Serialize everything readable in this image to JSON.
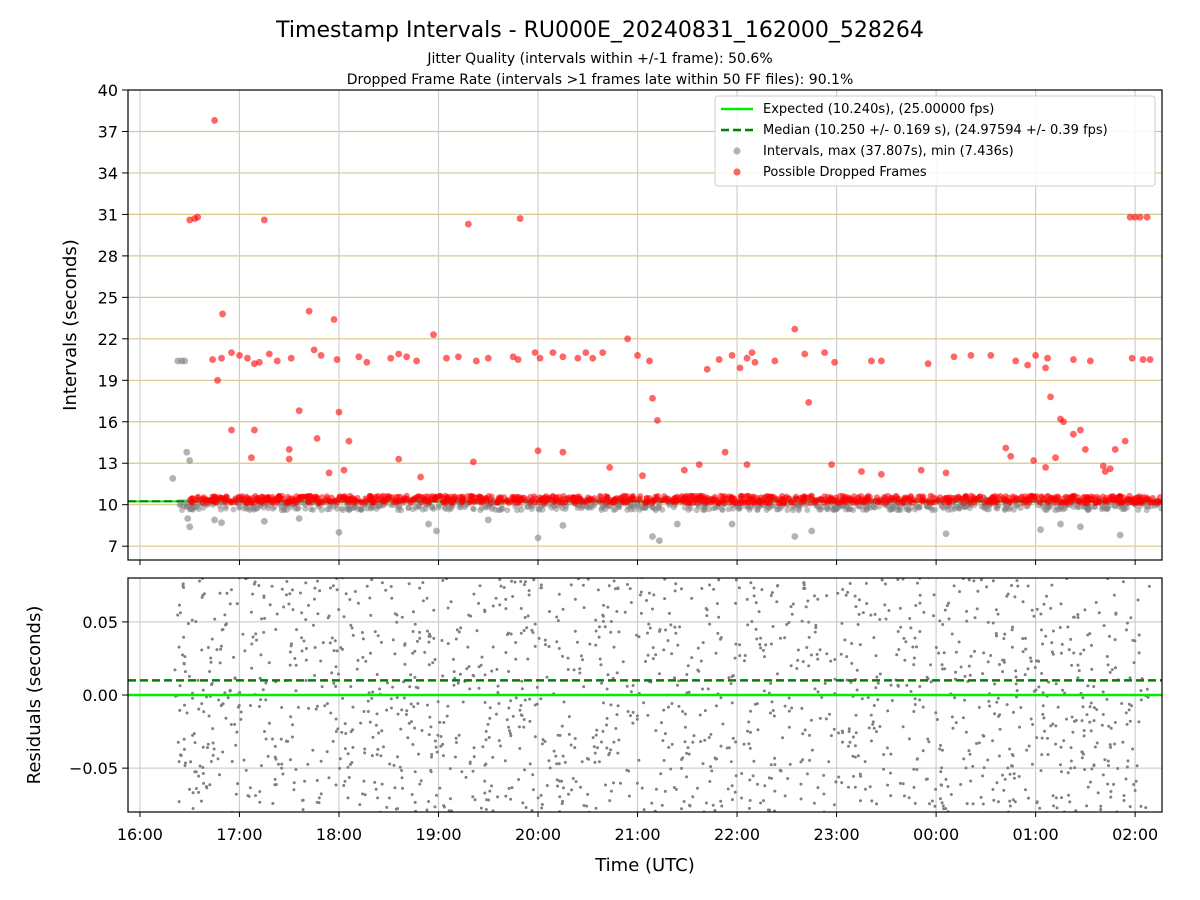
{
  "chart_data": [
    {
      "type": "scatter",
      "title": "Timestamp Intervals - RU000E_20240831_162000_528264",
      "subtitle_1": "Jitter Quality (intervals within +/-1 frame): 50.6%",
      "subtitle_2": "Dropped Frame Rate (intervals >1 frames late within 50 FF files): 90.1%",
      "ylabel": "Intervals (seconds)",
      "ylim": [
        6,
        40
      ],
      "yticks": [
        "7",
        "10",
        "13",
        "16",
        "19",
        "22",
        "25",
        "28",
        "31",
        "34",
        "37",
        "40"
      ],
      "grid": true,
      "legend_position": "top-right",
      "legend": [
        {
          "label": "Expected (10.240s), (25.00000 fps)",
          "color": "#00ee00",
          "style": "solid-line"
        },
        {
          "label": "Median (10.250 +/- 0.169 s), (24.97594 +/- 0.39 fps)",
          "color": "#007f00",
          "style": "dashed-line"
        },
        {
          "label": "Intervals, max (37.807s), min (7.436s)",
          "color": "#808080",
          "style": "marker"
        },
        {
          "label": "Possible Dropped Frames",
          "color": "#ff0000",
          "style": "marker"
        }
      ],
      "expected_interval": 10.24,
      "median_interval": 10.25,
      "intervals_summary": {
        "max": 37.807,
        "min": 7.436
      },
      "baseline_band_hours": [
        16.38,
        26.27
      ],
      "outliers_gray": [
        {
          "t": 16.33,
          "y": 11.9
        },
        {
          "t": 16.38,
          "y": 20.4
        },
        {
          "t": 16.42,
          "y": 20.4
        },
        {
          "t": 16.45,
          "y": 20.4
        },
        {
          "t": 16.47,
          "y": 13.8
        },
        {
          "t": 16.5,
          "y": 13.2
        },
        {
          "t": 16.48,
          "y": 9.0
        },
        {
          "t": 16.5,
          "y": 8.4
        },
        {
          "t": 16.75,
          "y": 8.9
        },
        {
          "t": 16.82,
          "y": 8.7
        },
        {
          "t": 17.25,
          "y": 8.8
        },
        {
          "t": 17.6,
          "y": 9.0
        },
        {
          "t": 18.0,
          "y": 8.0
        },
        {
          "t": 18.9,
          "y": 8.6
        },
        {
          "t": 18.98,
          "y": 8.1
        },
        {
          "t": 19.5,
          "y": 8.9
        },
        {
          "t": 20.0,
          "y": 7.6
        },
        {
          "t": 20.25,
          "y": 8.5
        },
        {
          "t": 21.15,
          "y": 7.7
        },
        {
          "t": 21.22,
          "y": 7.4
        },
        {
          "t": 21.4,
          "y": 8.6
        },
        {
          "t": 21.95,
          "y": 8.6
        },
        {
          "t": 22.58,
          "y": 7.7
        },
        {
          "t": 22.75,
          "y": 8.1
        },
        {
          "t": 24.1,
          "y": 7.9
        },
        {
          "t": 25.05,
          "y": 8.2
        },
        {
          "t": 25.25,
          "y": 8.6
        },
        {
          "t": 25.45,
          "y": 8.4
        },
        {
          "t": 25.85,
          "y": 7.8
        }
      ],
      "dropped_frames": [
        {
          "t": 16.5,
          "y": 30.6
        },
        {
          "t": 16.55,
          "y": 30.7
        },
        {
          "t": 16.58,
          "y": 30.8
        },
        {
          "t": 16.75,
          "y": 37.8
        },
        {
          "t": 16.83,
          "y": 23.8
        },
        {
          "t": 16.73,
          "y": 20.5
        },
        {
          "t": 16.78,
          "y": 19.0
        },
        {
          "t": 16.82,
          "y": 20.6
        },
        {
          "t": 16.92,
          "y": 21.0
        },
        {
          "t": 17.0,
          "y": 20.8
        },
        {
          "t": 17.08,
          "y": 20.6
        },
        {
          "t": 17.15,
          "y": 20.2
        },
        {
          "t": 17.2,
          "y": 20.3
        },
        {
          "t": 17.25,
          "y": 30.6
        },
        {
          "t": 17.3,
          "y": 20.9
        },
        {
          "t": 17.38,
          "y": 20.4
        },
        {
          "t": 17.52,
          "y": 20.6
        },
        {
          "t": 17.7,
          "y": 24.0
        },
        {
          "t": 17.75,
          "y": 21.2
        },
        {
          "t": 17.82,
          "y": 20.8
        },
        {
          "t": 17.95,
          "y": 23.4
        },
        {
          "t": 17.98,
          "y": 20.5
        },
        {
          "t": 18.2,
          "y": 20.7
        },
        {
          "t": 18.28,
          "y": 20.3
        },
        {
          "t": 18.52,
          "y": 20.6
        },
        {
          "t": 18.6,
          "y": 20.9
        },
        {
          "t": 18.68,
          "y": 20.7
        },
        {
          "t": 18.78,
          "y": 20.4
        },
        {
          "t": 18.95,
          "y": 22.3
        },
        {
          "t": 19.08,
          "y": 20.6
        },
        {
          "t": 19.2,
          "y": 20.7
        },
        {
          "t": 19.3,
          "y": 30.3
        },
        {
          "t": 19.38,
          "y": 20.4
        },
        {
          "t": 19.5,
          "y": 20.6
        },
        {
          "t": 19.75,
          "y": 20.7
        },
        {
          "t": 19.82,
          "y": 30.7
        },
        {
          "t": 19.8,
          "y": 20.5
        },
        {
          "t": 19.97,
          "y": 21.0
        },
        {
          "t": 20.02,
          "y": 20.6
        },
        {
          "t": 20.15,
          "y": 21.0
        },
        {
          "t": 20.25,
          "y": 20.7
        },
        {
          "t": 20.4,
          "y": 20.6
        },
        {
          "t": 20.48,
          "y": 21.0
        },
        {
          "t": 20.55,
          "y": 20.6
        },
        {
          "t": 20.65,
          "y": 21.0
        },
        {
          "t": 20.9,
          "y": 22.0
        },
        {
          "t": 21.0,
          "y": 20.8
        },
        {
          "t": 21.12,
          "y": 20.4
        },
        {
          "t": 21.15,
          "y": 17.7
        },
        {
          "t": 21.2,
          "y": 16.1
        },
        {
          "t": 21.7,
          "y": 19.8
        },
        {
          "t": 21.82,
          "y": 20.5
        },
        {
          "t": 21.95,
          "y": 20.8
        },
        {
          "t": 22.03,
          "y": 19.9
        },
        {
          "t": 22.1,
          "y": 20.6
        },
        {
          "t": 22.15,
          "y": 21.0
        },
        {
          "t": 22.18,
          "y": 20.3
        },
        {
          "t": 22.38,
          "y": 20.4
        },
        {
          "t": 22.58,
          "y": 22.7
        },
        {
          "t": 22.68,
          "y": 20.9
        },
        {
          "t": 22.72,
          "y": 17.4
        },
        {
          "t": 22.88,
          "y": 21.0
        },
        {
          "t": 22.98,
          "y": 20.3
        },
        {
          "t": 23.35,
          "y": 20.4
        },
        {
          "t": 23.45,
          "y": 20.4
        },
        {
          "t": 23.92,
          "y": 20.2
        },
        {
          "t": 24.18,
          "y": 20.7
        },
        {
          "t": 24.35,
          "y": 20.8
        },
        {
          "t": 24.55,
          "y": 20.8
        },
        {
          "t": 24.8,
          "y": 20.4
        },
        {
          "t": 24.92,
          "y": 20.1
        },
        {
          "t": 25.0,
          "y": 20.8
        },
        {
          "t": 25.1,
          "y": 19.9
        },
        {
          "t": 25.12,
          "y": 20.6
        },
        {
          "t": 25.15,
          "y": 17.8
        },
        {
          "t": 25.25,
          "y": 16.2
        },
        {
          "t": 25.28,
          "y": 16.0
        },
        {
          "t": 25.38,
          "y": 20.5
        },
        {
          "t": 25.55,
          "y": 20.4
        },
        {
          "t": 25.95,
          "y": 30.8
        },
        {
          "t": 26.0,
          "y": 30.8
        },
        {
          "t": 26.05,
          "y": 30.8
        },
        {
          "t": 26.12,
          "y": 30.8
        },
        {
          "t": 25.97,
          "y": 20.6
        },
        {
          "t": 26.08,
          "y": 20.5
        },
        {
          "t": 26.15,
          "y": 20.5
        },
        {
          "t": 16.92,
          "y": 15.4
        },
        {
          "t": 17.12,
          "y": 13.4
        },
        {
          "t": 17.15,
          "y": 15.4
        },
        {
          "t": 17.5,
          "y": 14.0
        },
        {
          "t": 17.5,
          "y": 13.3
        },
        {
          "t": 17.6,
          "y": 16.8
        },
        {
          "t": 17.78,
          "y": 14.8
        },
        {
          "t": 18.0,
          "y": 16.7
        },
        {
          "t": 18.1,
          "y": 14.6
        },
        {
          "t": 17.9,
          "y": 12.3
        },
        {
          "t": 18.05,
          "y": 12.5
        },
        {
          "t": 18.6,
          "y": 13.3
        },
        {
          "t": 18.82,
          "y": 12.0
        },
        {
          "t": 19.35,
          "y": 13.1
        },
        {
          "t": 20.0,
          "y": 13.9
        },
        {
          "t": 20.25,
          "y": 13.8
        },
        {
          "t": 20.72,
          "y": 12.7
        },
        {
          "t": 21.05,
          "y": 12.1
        },
        {
          "t": 21.47,
          "y": 12.5
        },
        {
          "t": 21.62,
          "y": 12.9
        },
        {
          "t": 21.88,
          "y": 13.8
        },
        {
          "t": 22.1,
          "y": 12.9
        },
        {
          "t": 22.95,
          "y": 12.9
        },
        {
          "t": 23.25,
          "y": 12.4
        },
        {
          "t": 23.45,
          "y": 12.2
        },
        {
          "t": 23.85,
          "y": 12.5
        },
        {
          "t": 24.1,
          "y": 12.3
        },
        {
          "t": 24.7,
          "y": 14.1
        },
        {
          "t": 24.75,
          "y": 13.5
        },
        {
          "t": 24.98,
          "y": 13.2
        },
        {
          "t": 25.1,
          "y": 12.7
        },
        {
          "t": 25.2,
          "y": 13.4
        },
        {
          "t": 25.38,
          "y": 15.1
        },
        {
          "t": 25.45,
          "y": 15.4
        },
        {
          "t": 25.5,
          "y": 14.0
        },
        {
          "t": 25.68,
          "y": 12.8
        },
        {
          "t": 25.7,
          "y": 12.4
        },
        {
          "t": 25.75,
          "y": 12.6
        },
        {
          "t": 25.8,
          "y": 14.0
        },
        {
          "t": 25.9,
          "y": 14.6
        }
      ]
    },
    {
      "type": "scatter",
      "ylabel": "Residuals (seconds)",
      "xlabel": "Time (UTC)",
      "ylim": [
        -0.08,
        0.08
      ],
      "yticks": [
        "−0.05",
        "0.00",
        "0.05"
      ],
      "xticks": [
        "16:00",
        "17:00",
        "18:00",
        "19:00",
        "20:00",
        "21:00",
        "22:00",
        "23:00",
        "00:00",
        "01:00",
        "02:00"
      ],
      "grid": true,
      "expected_residual": 0.0,
      "median_residual": 0.01,
      "residual_points_time_range": [
        16.35,
        26.15
      ],
      "residual_color": "#808080"
    }
  ]
}
